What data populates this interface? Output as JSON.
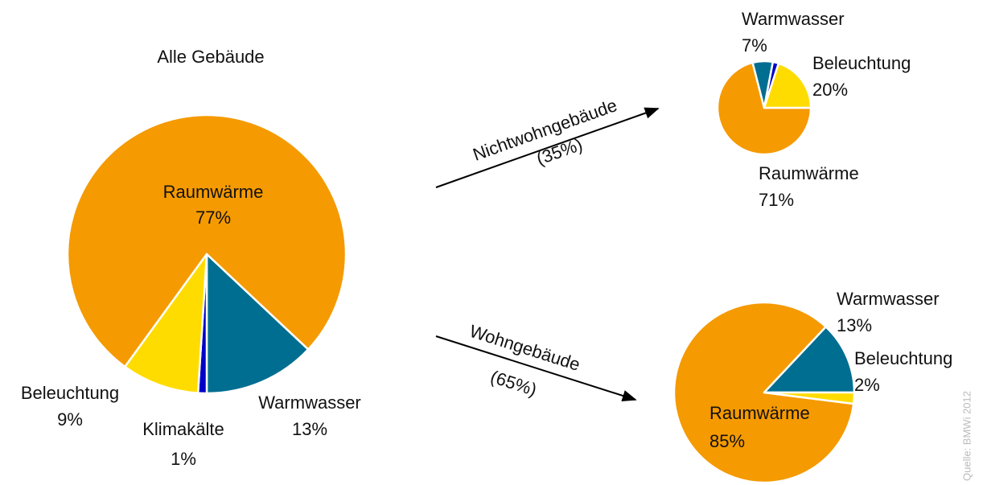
{
  "chart_data": [
    {
      "type": "pie",
      "title": "Alle Gebäude",
      "categories": [
        "Raumwärme",
        "Warmwasser",
        "Klimakälte",
        "Beleuchtung"
      ],
      "values": [
        77,
        13,
        1,
        9
      ],
      "value_labels": [
        "77%",
        "13%",
        "1%",
        "9%"
      ],
      "colors": [
        "#f59a00",
        "#006e91",
        "#0000c8",
        "#ffdc00"
      ]
    },
    {
      "type": "pie",
      "annotations": [
        "Nichtwohngebäude",
        "(35%)"
      ],
      "categories": [
        "Raumwärme",
        "Warmwasser",
        null,
        "Beleuchtung"
      ],
      "values": [
        71,
        7,
        2,
        20
      ],
      "value_labels": [
        "71%",
        "7%",
        null,
        "20%"
      ],
      "colors": [
        "#f59a00",
        "#006e91",
        "#0000c8",
        "#ffdc00"
      ]
    },
    {
      "type": "pie",
      "annotations": [
        "Wohngebäude",
        "(65%)"
      ],
      "categories": [
        "Raumwärme",
        "Warmwasser",
        "Beleuchtung"
      ],
      "values": [
        85,
        13,
        2
      ],
      "value_labels": [
        "85%",
        "13%",
        "2%"
      ],
      "colors": [
        "#f59a00",
        "#006e91",
        "#ffdc00"
      ]
    }
  ],
  "source": "Quelle: BMWi 2012"
}
